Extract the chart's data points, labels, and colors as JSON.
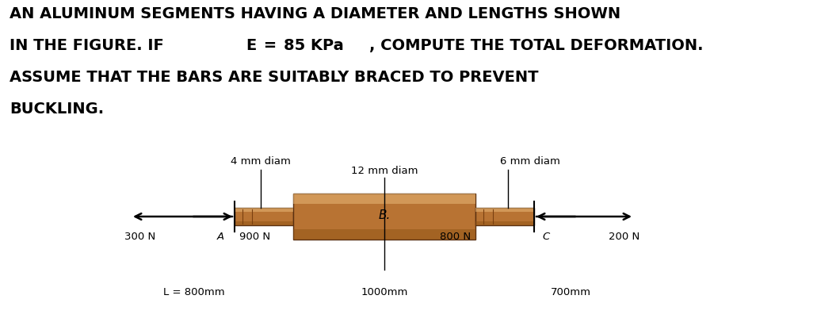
{
  "bg_color": "#ffffff",
  "text_color": "#000000",
  "title_lines": [
    "AN ALUMINUM SEGMENTS HAVING A DIAMETER AND LENGTHS SHOWN",
    "IN THE FIGURE. IF E = 85 KPa, COMPUTE THE TOTAL DEFORMATION.",
    "ASSUME THAT THE BARS ARE SUITABLY BRACED TO PREVENT",
    "BUCKLING."
  ],
  "label_4mm": "4 mm diam",
  "label_12mm": "12 mm diam",
  "label_6mm": "6 mm diam",
  "label_300N": "300 N",
  "label_900N": "900 N",
  "label_800N": "800 N",
  "label_200N": "200 N",
  "label_A": "A",
  "label_B": "B.",
  "label_C": "C",
  "label_L": "L = 800mm",
  "label_1000": "1000mm",
  "label_700": "700mm",
  "bar_main": "#b87333",
  "bar_light": "#d4956a",
  "bar_highlight": "#e8b878",
  "bar_dark": "#8B5010",
  "bar_edge": "#5a3010",
  "fig_w": 10.6,
  "fig_h": 4.11,
  "dpi": 100
}
